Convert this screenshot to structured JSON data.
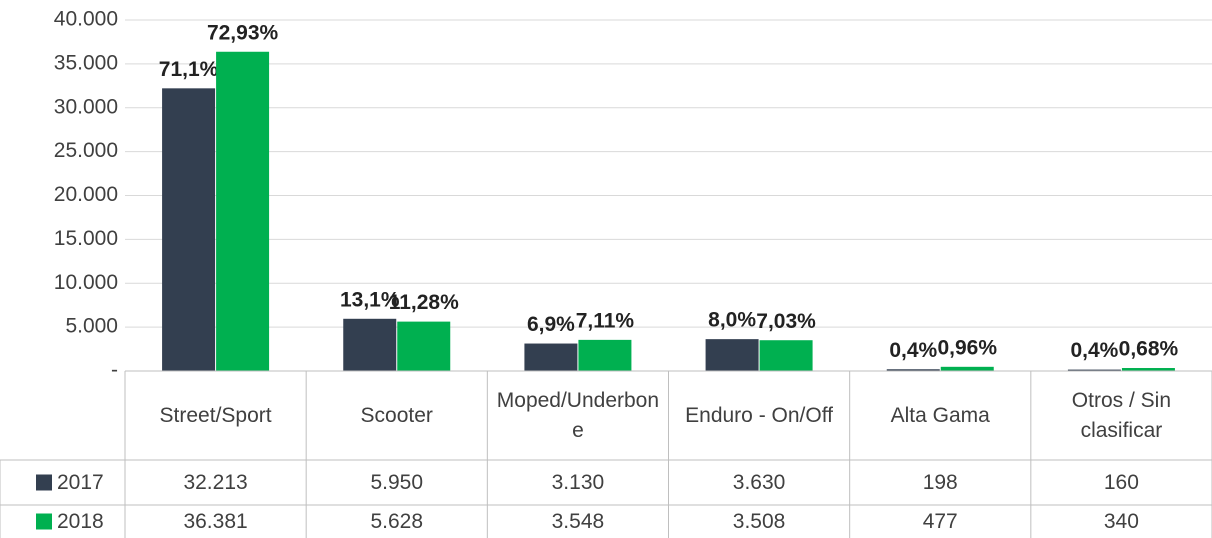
{
  "chart_data": {
    "type": "bar",
    "categories": [
      "Street/Sport",
      "Scooter",
      "Moped/Underbone",
      "Enduro - On/Off",
      "Alta Gama",
      "Otros / Sin clasificar"
    ],
    "series": [
      {
        "name": "2017",
        "color": "#333f50",
        "values": [
          32213,
          5950,
          3130,
          3630,
          198,
          160
        ],
        "value_labels": [
          "32.213",
          "5.950",
          "3.130",
          "3.630",
          "198",
          "160"
        ],
        "shares": [
          71.1,
          13.1,
          6.9,
          8.0,
          0.4,
          0.4
        ],
        "share_labels": [
          "71,1%",
          "13,1%",
          "6,9%",
          "8,0%",
          "0,4%",
          "0,4%"
        ]
      },
      {
        "name": "2018",
        "color": "#00b050",
        "values": [
          36381,
          5628,
          3548,
          3508,
          477,
          340
        ],
        "value_labels": [
          "36.381",
          "5.628",
          "3.548",
          "3.508",
          "477",
          "340"
        ],
        "shares": [
          72.93,
          11.28,
          7.11,
          7.03,
          0.96,
          0.68
        ],
        "share_labels": [
          "72,93%",
          "11,28%",
          "7,11%",
          "7,03%",
          "0,96%",
          "0,68%"
        ]
      }
    ],
    "ylim": [
      0,
      40000
    ],
    "yticks": [
      {
        "value": 0,
        "label": "-"
      },
      {
        "value": 5000,
        "label": "5.000"
      },
      {
        "value": 10000,
        "label": "10.000"
      },
      {
        "value": 15000,
        "label": "15.000"
      },
      {
        "value": 20000,
        "label": "20.000"
      },
      {
        "value": 25000,
        "label": "25.000"
      },
      {
        "value": 30000,
        "label": "30.000"
      },
      {
        "value": 35000,
        "label": "35.000"
      },
      {
        "value": 40000,
        "label": "40.000"
      }
    ],
    "grid": true,
    "data_table": true
  }
}
